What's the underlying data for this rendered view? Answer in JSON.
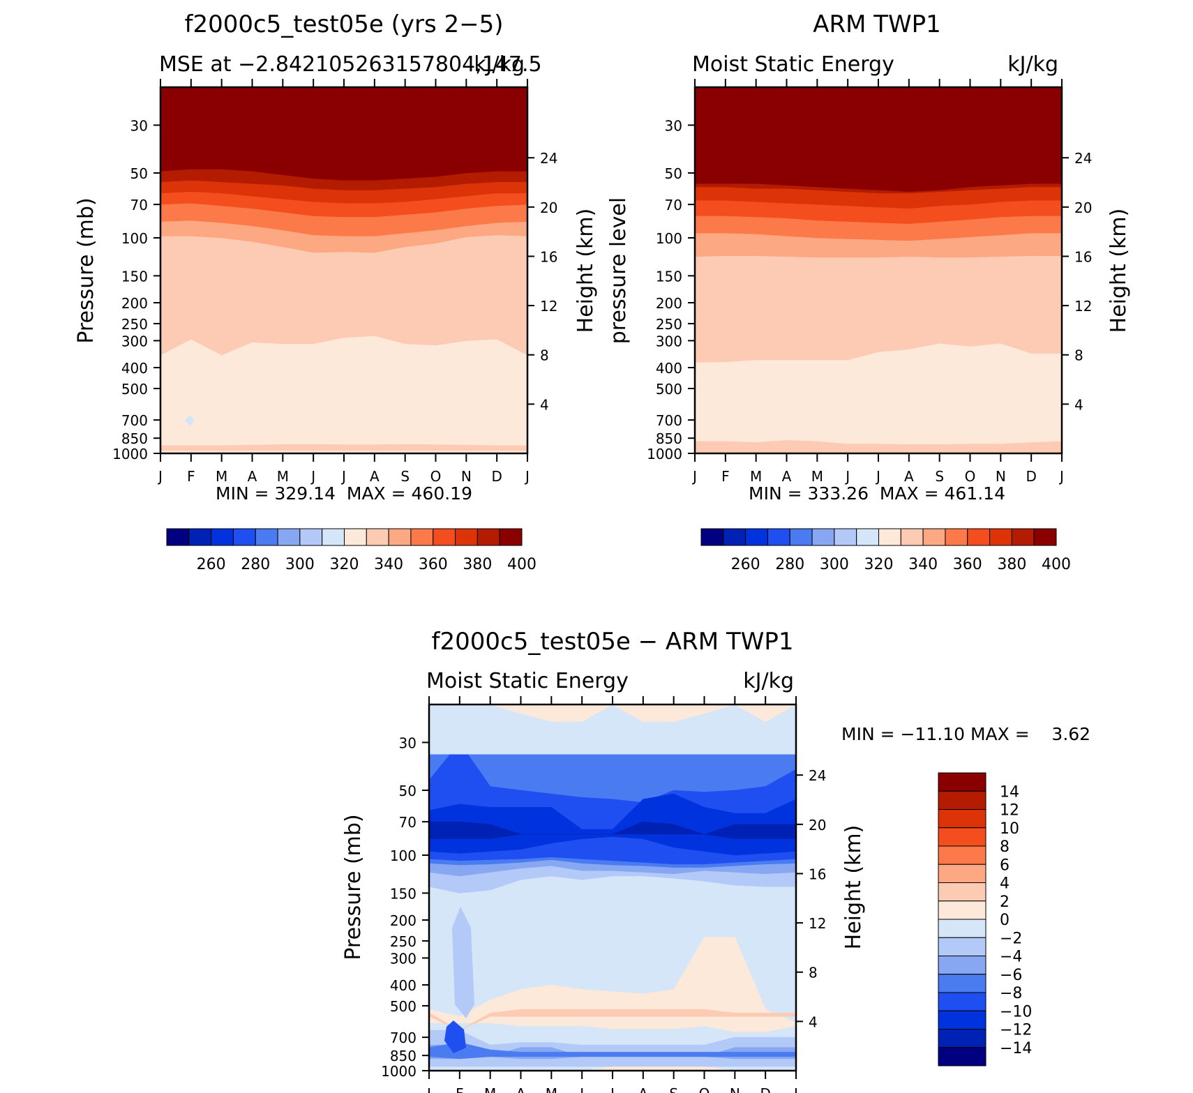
{
  "chart_data": [
    {
      "type": "heatmap",
      "title": "f2000c5_test05e (yrs 2−5)",
      "subtitle_left": "MSE at −2.842105263157804,147.5",
      "subtitle_right": "kJ/kg",
      "ylabel": "Pressure (mb)",
      "ylabel_right": "Height (km)",
      "pressure_ticks": [
        "30",
        "50",
        "70",
        "100",
        "150",
        "200",
        "250",
        "300",
        "400",
        "500",
        "700",
        "850",
        "1000"
      ],
      "height_ticks": [
        "24",
        "20",
        "16",
        "12",
        "8",
        "4"
      ],
      "months": [
        "J",
        "F",
        "M",
        "A",
        "M",
        "J",
        "J",
        "A",
        "S",
        "O",
        "N",
        "D",
        "J"
      ],
      "stats": "MIN = 329.14  MAX = 460.19",
      "min": 329.14,
      "max": 460.19,
      "colorbar_labels": [
        "260",
        "280",
        "300",
        "320",
        "340",
        "360",
        "380",
        "400"
      ],
      "colors": [
        "#000080",
        "#0022b4",
        "#0033dd",
        "#1f4ff0",
        "#4a7bf0",
        "#87a7f2",
        "#b3c9f8",
        "#d5e6f8",
        "#fde9d9",
        "#fdcbb3",
        "#fca882",
        "#fc7a4a",
        "#f44e1f",
        "#dd3308",
        "#b31c00",
        "#8a0000"
      ],
      "levels": [
        250,
        260,
        270,
        280,
        290,
        300,
        310,
        320,
        330,
        340,
        350,
        360,
        370,
        380,
        390,
        400,
        410
      ],
      "field": [
        [
          335,
          335,
          335,
          335,
          335,
          335,
          335,
          335,
          335,
          335,
          335,
          335,
          335
        ],
        [
          335,
          335,
          335,
          335,
          335,
          335,
          335,
          335,
          335,
          335,
          335,
          335,
          335
        ],
        [
          345,
          345,
          345,
          345,
          345,
          345,
          345,
          345,
          345,
          345,
          345,
          345,
          345
        ],
        [
          355,
          355,
          355,
          355,
          355,
          355,
          355,
          355,
          355,
          355,
          355,
          355,
          355
        ],
        [
          365,
          365,
          365,
          365,
          365,
          365,
          365,
          365,
          365,
          365,
          365,
          365,
          365
        ],
        [
          375,
          375,
          375,
          375,
          375,
          375,
          375,
          375,
          375,
          375,
          375,
          375,
          375
        ],
        [
          385,
          385,
          385,
          385,
          385,
          385,
          385,
          385,
          385,
          385,
          385,
          385,
          385
        ],
        [
          395,
          395,
          395,
          395,
          395,
          395,
          395,
          395,
          395,
          395,
          395,
          395,
          395
        ],
        [
          405,
          405,
          405,
          405,
          405,
          405,
          405,
          405,
          405,
          405,
          405,
          405,
          405
        ]
      ]
    },
    {
      "type": "heatmap",
      "title": "ARM TWP1",
      "subtitle_left": "Moist Static Energy",
      "subtitle_right": "kJ/kg",
      "ylabel": "pressure level",
      "ylabel_right": "Height (km)",
      "pressure_ticks": [
        "30",
        "50",
        "70",
        "100",
        "150",
        "200",
        "250",
        "300",
        "400",
        "500",
        "700",
        "850",
        "1000"
      ],
      "height_ticks": [
        "24",
        "20",
        "16",
        "12",
        "8",
        "4"
      ],
      "months": [
        "J",
        "F",
        "M",
        "A",
        "M",
        "J",
        "J",
        "A",
        "S",
        "O",
        "N",
        "D",
        "J"
      ],
      "stats": "MIN = 333.26  MAX = 461.14",
      "min": 333.26,
      "max": 461.14,
      "colorbar_labels": [
        "260",
        "280",
        "300",
        "320",
        "340",
        "360",
        "380",
        "400"
      ],
      "colors": [
        "#000080",
        "#0022b4",
        "#0033dd",
        "#1f4ff0",
        "#4a7bf0",
        "#87a7f2",
        "#b3c9f8",
        "#d5e6f8",
        "#fde9d9",
        "#fdcbb3",
        "#fca882",
        "#fc7a4a",
        "#f44e1f",
        "#dd3308",
        "#b31c00",
        "#8a0000"
      ],
      "levels": [
        250,
        260,
        270,
        280,
        290,
        300,
        310,
        320,
        330,
        340,
        350,
        360,
        370,
        380,
        390,
        400,
        410
      ]
    },
    {
      "type": "heatmap",
      "title": "f2000c5_test05e − ARM TWP1",
      "subtitle_left": "Moist Static Energy",
      "subtitle_right": "kJ/kg",
      "ylabel": "Pressure (mb)",
      "ylabel_right": "Height (km)",
      "pressure_ticks": [
        "30",
        "50",
        "70",
        "100",
        "150",
        "200",
        "250",
        "300",
        "400",
        "500",
        "700",
        "850",
        "1000"
      ],
      "height_ticks": [
        "24",
        "20",
        "16",
        "12",
        "8",
        "4"
      ],
      "months": [
        "J",
        "F",
        "M",
        "A",
        "M",
        "J",
        "J",
        "A",
        "S",
        "O",
        "N",
        "D",
        "J"
      ],
      "stats": "MIN = −11.10 MAX =    3.62",
      "min": -11.1,
      "max": 3.62,
      "colorbar_labels": [
        "14",
        "12",
        "10",
        "8",
        "6",
        "4",
        "2",
        "0",
        "−2",
        "−4",
        "−6",
        "−8",
        "−10",
        "−12",
        "−14"
      ],
      "colors": [
        "#000080",
        "#0022b4",
        "#0033dd",
        "#1f4ff0",
        "#4a7bf0",
        "#87a7f2",
        "#b3c9f8",
        "#d5e6f8",
        "#fde9d9",
        "#fdcbb3",
        "#fca882",
        "#fc7a4a",
        "#f44e1f",
        "#dd3308",
        "#b31c00",
        "#8a0000"
      ],
      "levels": [
        -16,
        -14,
        -12,
        -10,
        -8,
        -6,
        -4,
        -2,
        0,
        2,
        4,
        6,
        8,
        10,
        12,
        14,
        16
      ]
    }
  ]
}
